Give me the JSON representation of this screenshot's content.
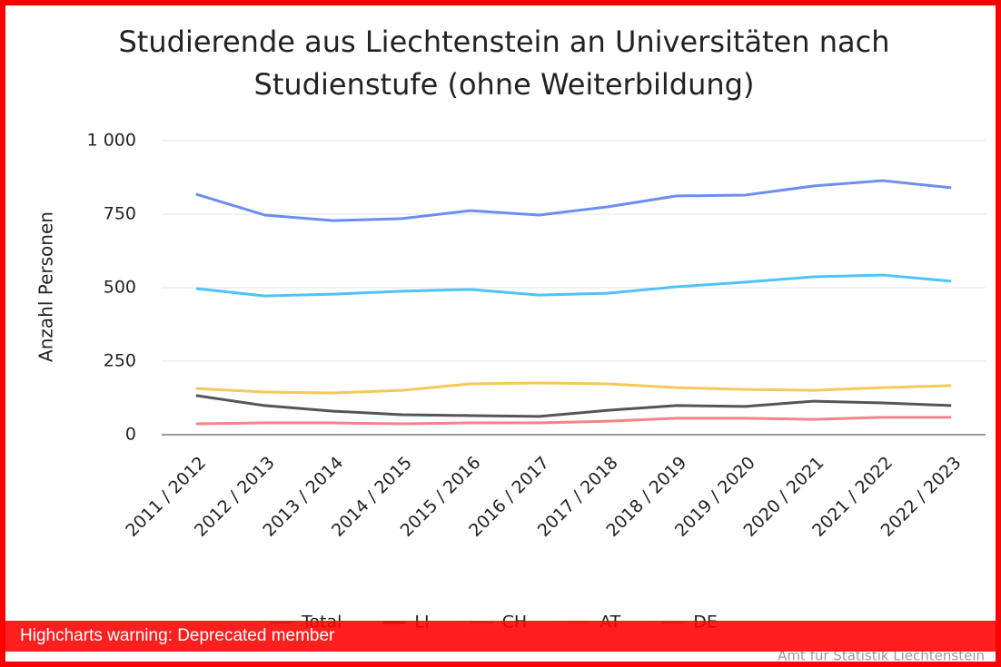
{
  "chart_data": {
    "type": "line",
    "title": "Studierende aus Liechtenstein an Universitäten nach",
    "subtitle": "Studienstufe (ohne Weiterbildung)",
    "y_label": "Anzahl Personen",
    "categories": [
      "2011 / 2012",
      "2012 / 2013",
      "2013 / 2014",
      "2014 / 2015",
      "2015 / 2016",
      "2016 / 2017",
      "2017 / 2018",
      "2018 / 2019",
      "2019 / 2020",
      "2020 / 2021",
      "2021 / 2022",
      "2022 / 2023"
    ],
    "series": [
      {
        "name": "Total",
        "color": "#6b8ef2",
        "values": [
          818,
          747,
          728,
          735,
          762,
          747,
          775,
          812,
          815,
          846,
          864,
          840
        ]
      },
      {
        "name": "LI",
        "color": "#555555",
        "values": [
          133,
          99,
          80,
          68,
          65,
          62,
          83,
          99,
          96,
          114,
          108,
          99
        ]
      },
      {
        "name": "CH",
        "color": "#4fc3f7",
        "values": [
          497,
          472,
          478,
          488,
          494,
          475,
          481,
          503,
          519,
          537,
          543,
          522
        ]
      },
      {
        "name": "AT",
        "color": "#f5c85a",
        "values": [
          157,
          145,
          142,
          151,
          173,
          176,
          173,
          160,
          154,
          151,
          160,
          167
        ]
      },
      {
        "name": "DE",
        "color": "#f7828a",
        "values": [
          37,
          40,
          40,
          37,
          40,
          40,
          46,
          56,
          56,
          52,
          59,
          59
        ]
      }
    ],
    "ylim": [
      0,
      1000
    ],
    "yticks": [
      0,
      250,
      500,
      750,
      {
        "value": 1000,
        "label": "1 000"
      }
    ],
    "grid": true,
    "legend": "bottom",
    "credit": "Amt für Statistik Liechtenstein"
  },
  "warning": "Highcharts warning: Deprecated member"
}
